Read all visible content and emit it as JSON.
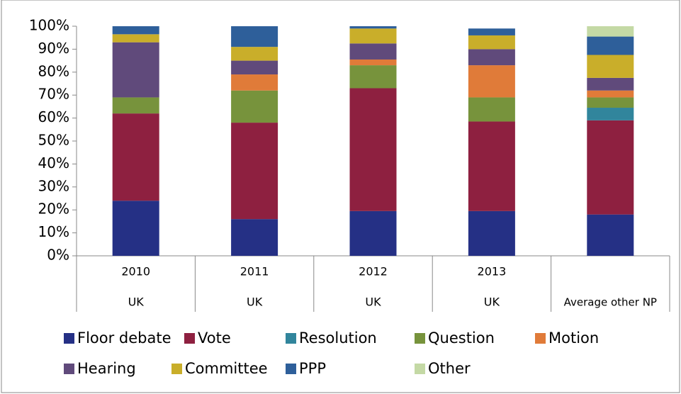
{
  "chart_data": {
    "type": "stacked_bar",
    "categories": [
      "2010",
      "2011",
      "2012",
      "2013",
      null
    ],
    "category_groups": [
      "UK",
      "UK",
      "UK",
      "UK",
      "Average other NP"
    ],
    "series": [
      {
        "name": "Floor debate",
        "color": "#253085",
        "values": [
          24,
          16,
          19.5,
          19.5,
          18
        ]
      },
      {
        "name": "Vote",
        "color": "#8e2040",
        "values": [
          38,
          42,
          53.5,
          39,
          41
        ]
      },
      {
        "name": "Resolution",
        "color": "#31859c",
        "values": [
          0,
          0,
          0,
          0,
          5.5
        ]
      },
      {
        "name": "Question",
        "color": "#77933c",
        "values": [
          7,
          14,
          10,
          10.5,
          4.5
        ]
      },
      {
        "name": "Motion",
        "color": "#e07b39",
        "values": [
          0,
          7,
          2.5,
          14,
          3
        ]
      },
      {
        "name": "Hearing",
        "color": "#604a7b",
        "values": [
          24,
          6,
          7,
          7,
          5.5
        ]
      },
      {
        "name": "Committee",
        "color": "#c9ae2a",
        "values": [
          3.5,
          6,
          6.5,
          6,
          10
        ]
      },
      {
        "name": "PPP",
        "color": "#2e5f9a",
        "values": [
          3.5,
          9,
          1,
          3,
          8
        ]
      },
      {
        "name": "Other",
        "color": "#c4d9a5",
        "values": [
          0,
          0,
          0,
          0,
          4.5
        ]
      }
    ],
    "ylim": [
      0,
      100
    ],
    "yticks": [
      {
        "value": 0,
        "label": "0%"
      },
      {
        "value": 10,
        "label": "10%"
      },
      {
        "value": 20,
        "label": "20%"
      },
      {
        "value": 30,
        "label": "30%"
      },
      {
        "value": 40,
        "label": "40%"
      },
      {
        "value": 50,
        "label": "50%"
      },
      {
        "value": 60,
        "label": "60%"
      },
      {
        "value": 70,
        "label": "70%"
      },
      {
        "value": 80,
        "label": "80%"
      },
      {
        "value": 90,
        "label": "90%"
      },
      {
        "value": 100,
        "label": "100%"
      }
    ],
    "grid": false,
    "legend": "bottom"
  }
}
